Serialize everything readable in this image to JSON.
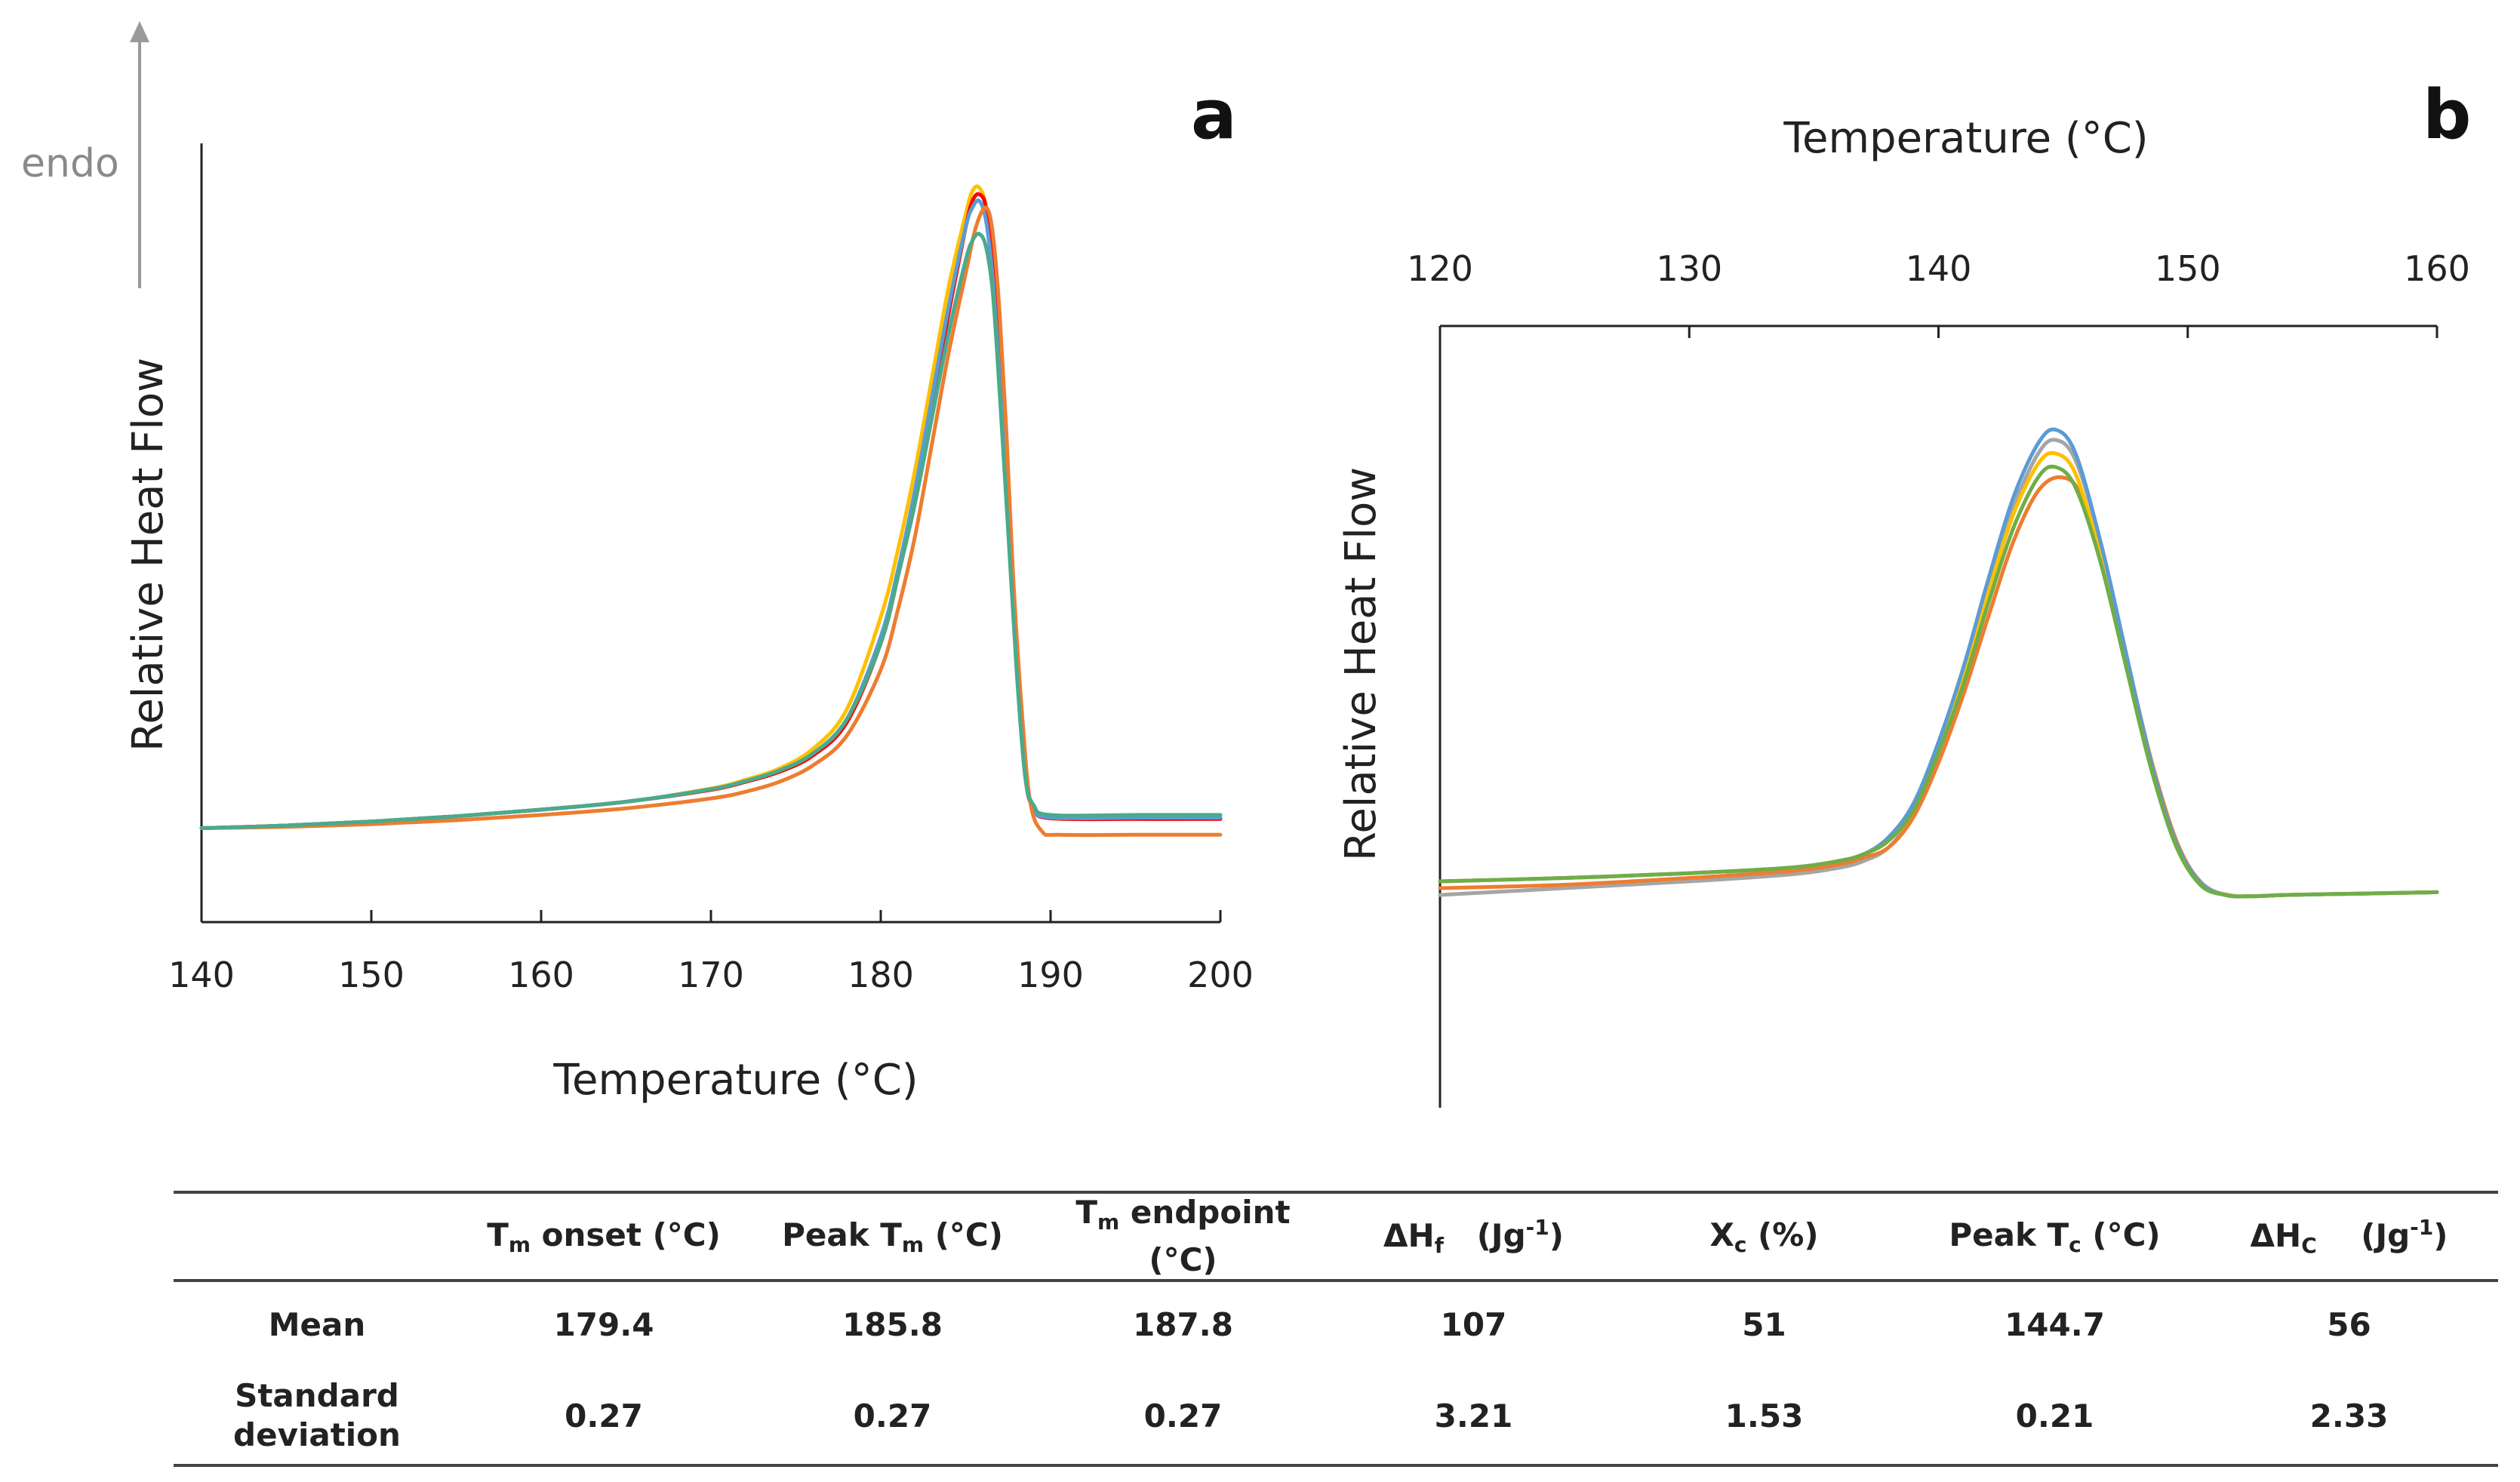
{
  "chart_data": [
    {
      "type": "line",
      "panel_label": "a",
      "annotation": "endo",
      "xlabel": "Temperature (°C)",
      "ylabel": "Relative Heat Flow",
      "xlim": [
        140,
        200
      ],
      "xticks": [
        140,
        150,
        160,
        170,
        180,
        190,
        200
      ],
      "x_axis_position": "bottom",
      "ylim": [
        0,
        1
      ],
      "grid": false,
      "legend": "none",
      "series": [
        {
          "color": "#ffc000",
          "x": [
            140,
            145,
            150,
            155,
            160,
            165,
            170,
            172,
            174,
            176,
            178,
            180,
            181,
            182,
            183,
            184,
            185,
            185.4,
            185.8,
            186.2,
            186.6,
            187,
            187.5,
            188,
            188.5,
            189,
            190,
            195,
            200
          ],
          "y": [
            0.02,
            0.024,
            0.03,
            0.038,
            0.048,
            0.06,
            0.08,
            0.093,
            0.11,
            0.14,
            0.2,
            0.34,
            0.44,
            0.56,
            0.7,
            0.84,
            0.95,
            0.985,
            0.99,
            0.96,
            0.86,
            0.7,
            0.48,
            0.26,
            0.1,
            0.05,
            0.035,
            0.035,
            0.035
          ]
        },
        {
          "color": "#ff0000",
          "x": [
            140,
            145,
            150,
            155,
            160,
            165,
            170,
            172,
            174,
            176,
            178,
            180,
            181,
            182,
            183,
            184,
            185,
            185.4,
            185.8,
            186.2,
            186.6,
            187,
            187.5,
            188,
            188.5,
            189,
            190,
            195,
            200
          ],
          "y": [
            0.02,
            0.024,
            0.03,
            0.038,
            0.048,
            0.06,
            0.078,
            0.09,
            0.105,
            0.13,
            0.18,
            0.3,
            0.4,
            0.52,
            0.66,
            0.8,
            0.93,
            0.97,
            0.98,
            0.96,
            0.87,
            0.72,
            0.5,
            0.27,
            0.1,
            0.05,
            0.035,
            0.034,
            0.034
          ]
        },
        {
          "color": "#5b9bd5",
          "x": [
            140,
            145,
            150,
            155,
            160,
            165,
            170,
            172,
            174,
            176,
            178,
            180,
            181,
            182,
            183,
            184,
            185,
            185.4,
            185.8,
            186.2,
            186.6,
            187,
            187.5,
            188,
            188.5,
            189,
            190,
            195,
            200
          ],
          "y": [
            0.02,
            0.024,
            0.03,
            0.038,
            0.048,
            0.06,
            0.079,
            0.091,
            0.107,
            0.133,
            0.185,
            0.31,
            0.41,
            0.53,
            0.67,
            0.81,
            0.93,
            0.96,
            0.97,
            0.94,
            0.85,
            0.7,
            0.48,
            0.26,
            0.1,
            0.05,
            0.036,
            0.036,
            0.036
          ]
        },
        {
          "color": "#ed7d31",
          "x": [
            140,
            145,
            150,
            155,
            160,
            165,
            170,
            172,
            174,
            176,
            178,
            180,
            181,
            182,
            183,
            184,
            185,
            185.6,
            186.2,
            186.6,
            187,
            187.4,
            187.8,
            188.3,
            188.8,
            189.5,
            190.5,
            195,
            200
          ],
          "y": [
            0.02,
            0.022,
            0.026,
            0.032,
            0.04,
            0.05,
            0.065,
            0.075,
            0.09,
            0.115,
            0.16,
            0.26,
            0.35,
            0.46,
            0.6,
            0.74,
            0.86,
            0.93,
            0.96,
            0.92,
            0.8,
            0.62,
            0.4,
            0.2,
            0.06,
            0.015,
            0.01,
            0.01,
            0.01
          ]
        },
        {
          "color": "#4aaa8c",
          "x": [
            140,
            145,
            150,
            155,
            160,
            165,
            170,
            172,
            174,
            176,
            178,
            180,
            181,
            182,
            183,
            184,
            185,
            185.4,
            185.8,
            186.2,
            186.6,
            187,
            187.5,
            188,
            188.5,
            189,
            190,
            195,
            200
          ],
          "y": [
            0.02,
            0.024,
            0.03,
            0.038,
            0.048,
            0.06,
            0.079,
            0.091,
            0.107,
            0.133,
            0.185,
            0.3,
            0.4,
            0.51,
            0.64,
            0.77,
            0.88,
            0.91,
            0.92,
            0.9,
            0.83,
            0.68,
            0.47,
            0.26,
            0.1,
            0.055,
            0.04,
            0.04,
            0.04
          ]
        }
      ]
    },
    {
      "type": "line",
      "panel_label": "b",
      "xlabel": "Temperature (°C)",
      "ylabel": "Relative Heat Flow",
      "xlim": [
        120,
        160
      ],
      "xticks": [
        120,
        130,
        140,
        150,
        160
      ],
      "x_axis_position": "top",
      "ylim": [
        0,
        1
      ],
      "grid": false,
      "legend": "none",
      "series": [
        {
          "color": "#a5a5a5",
          "x": [
            120,
            125,
            130,
            134,
            136,
            137,
            138,
            139,
            140,
            141,
            142,
            143,
            144,
            144.7,
            145.5,
            146.5,
            147.5,
            148.5,
            149.5,
            150.5,
            151.5,
            152.5,
            154,
            157,
            160
          ],
          "y": [
            0.84,
            0.83,
            0.82,
            0.81,
            0.8,
            0.79,
            0.77,
            0.72,
            0.63,
            0.52,
            0.39,
            0.27,
            0.19,
            0.17,
            0.2,
            0.32,
            0.48,
            0.64,
            0.76,
            0.82,
            0.84,
            0.842,
            0.84,
            0.838,
            0.836
          ]
        },
        {
          "color": "#ed7d31",
          "x": [
            120,
            125,
            130,
            134,
            136,
            137,
            138,
            139,
            140,
            141,
            142,
            143,
            144,
            144.9,
            145.7,
            146.6,
            147.6,
            148.6,
            149.6,
            150.6,
            151.6,
            152.6,
            154,
            157,
            160
          ],
          "y": [
            0.83,
            0.825,
            0.815,
            0.805,
            0.795,
            0.785,
            0.77,
            0.725,
            0.645,
            0.545,
            0.43,
            0.32,
            0.245,
            0.225,
            0.25,
            0.36,
            0.5,
            0.65,
            0.765,
            0.825,
            0.84,
            0.842,
            0.84,
            0.838,
            0.836
          ]
        },
        {
          "color": "#ffc000",
          "x": [
            120,
            125,
            130,
            134,
            136,
            137,
            138,
            139,
            140,
            141,
            142,
            143,
            144,
            144.7,
            145.5,
            146.5,
            147.5,
            148.5,
            149.5,
            150.5,
            151.5,
            152.5,
            154,
            157,
            160
          ],
          "y": [
            0.82,
            0.815,
            0.808,
            0.8,
            0.79,
            0.78,
            0.76,
            0.715,
            0.625,
            0.52,
            0.395,
            0.28,
            0.205,
            0.19,
            0.22,
            0.34,
            0.49,
            0.645,
            0.765,
            0.825,
            0.84,
            0.842,
            0.84,
            0.838,
            0.836
          ]
        },
        {
          "color": "#5b9bd5",
          "x": [
            120,
            125,
            130,
            134,
            136,
            137,
            138,
            139,
            140,
            141,
            142,
            143,
            144,
            144.7,
            145.5,
            146.5,
            147.5,
            148.5,
            149.5,
            150.5,
            151.5,
            152.5,
            154,
            157,
            160
          ],
          "y": [
            0.82,
            0.815,
            0.808,
            0.8,
            0.79,
            0.78,
            0.755,
            0.705,
            0.615,
            0.505,
            0.375,
            0.255,
            0.175,
            0.155,
            0.19,
            0.32,
            0.48,
            0.64,
            0.76,
            0.822,
            0.84,
            0.842,
            0.84,
            0.838,
            0.836
          ]
        },
        {
          "color": "#70ad47",
          "x": [
            120,
            125,
            130,
            134,
            136,
            137,
            138,
            139,
            140,
            141,
            142,
            143,
            144,
            144.7,
            145.5,
            146.5,
            147.5,
            148.5,
            149.5,
            150.5,
            151.5,
            152.5,
            154,
            157,
            160
          ],
          "y": [
            0.82,
            0.815,
            0.808,
            0.8,
            0.79,
            0.78,
            0.76,
            0.715,
            0.63,
            0.53,
            0.41,
            0.3,
            0.225,
            0.21,
            0.24,
            0.35,
            0.5,
            0.65,
            0.765,
            0.825,
            0.84,
            0.842,
            0.84,
            0.838,
            0.836
          ]
        }
      ]
    }
  ],
  "table": {
    "headers": {
      "tm_onset": {
        "main": "T",
        "sub": "m",
        "rest": " onset (°C)"
      },
      "peak_tm": {
        "main": "Peak T",
        "sub": "m",
        "rest": " (°C)"
      },
      "tm_endpoint": {
        "main": "T",
        "sub": "m",
        "rest": " endpoint",
        "line2": "(°C)"
      },
      "delta_hf": {
        "main": "ΔH",
        "sub": "f",
        "rest": "   (Jg",
        "sup": "-1",
        "close": ")"
      },
      "xc": {
        "main": "X",
        "sub": "c",
        "rest": " (%)"
      },
      "peak_tc": {
        "main": "Peak T",
        "sub": "c",
        "rest": " (°C)"
      },
      "delta_hc": {
        "main": "ΔH",
        "sub": "C",
        "rest": "    (Jg",
        "sup": "-1",
        "close": ")"
      }
    },
    "rows": [
      {
        "label": "Mean",
        "values": [
          "179.4",
          "185.8",
          "187.8",
          "107",
          "51",
          "144.7",
          "56"
        ]
      },
      {
        "label_line1": "Standard",
        "label_line2": "deviation",
        "values": [
          "0.27",
          "0.27",
          "0.27",
          "3.21",
          "1.53",
          "0.21",
          "2.33"
        ]
      }
    ]
  }
}
